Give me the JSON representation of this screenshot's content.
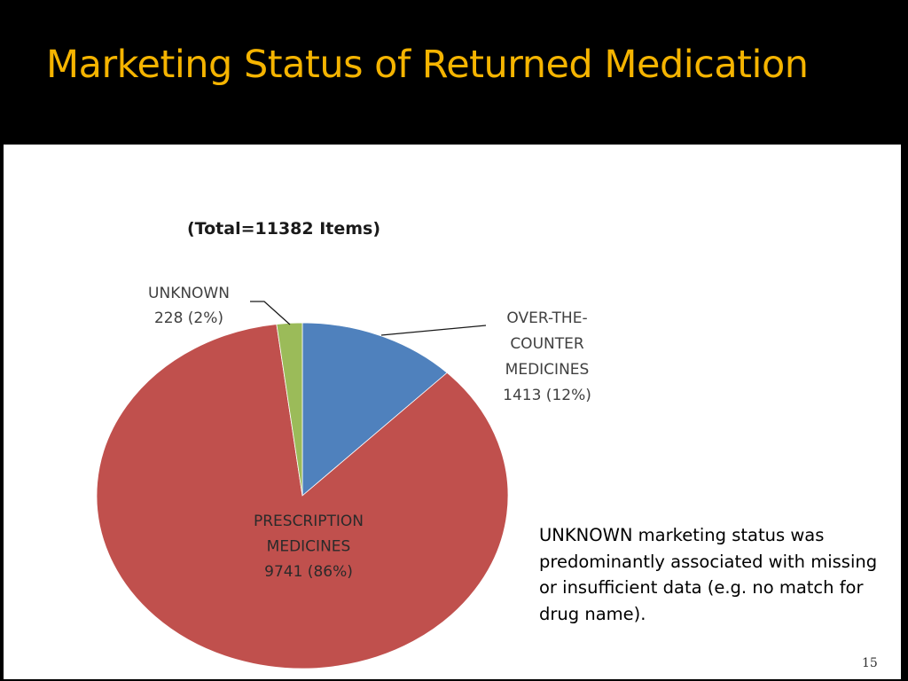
{
  "slide": {
    "title": "Marketing Status of Returned Medication",
    "note": "UNKNOWN marketing status was predominantly associated with missing or insufficient data (e.g. no match for drug name).",
    "page_number": "15"
  },
  "colors": {
    "title": "#f5b400",
    "background": "#000000",
    "panel": "#ffffff"
  },
  "chart_data": {
    "type": "pie",
    "title": "(Total=11382 Items)",
    "total": 11382,
    "slices": [
      {
        "name": "OVER-THE-COUNTER MEDICINES",
        "value": 1413,
        "percent": 12,
        "color": "#4f81bd",
        "label_lines": [
          "OVER-THE-",
          "COUNTER",
          "MEDICINES",
          "1413 (12%)"
        ]
      },
      {
        "name": "PRESCRIPTION MEDICINES",
        "value": 9741,
        "percent": 86,
        "color": "#c0504d",
        "label_lines": [
          "PRESCRIPTION",
          "MEDICINES",
          "9741 (86%)"
        ]
      },
      {
        "name": "UNKNOWN",
        "value": 228,
        "percent": 2,
        "color": "#9bbb59",
        "label_lines": [
          "UNKNOWN",
          "228 (2%)"
        ]
      }
    ]
  }
}
